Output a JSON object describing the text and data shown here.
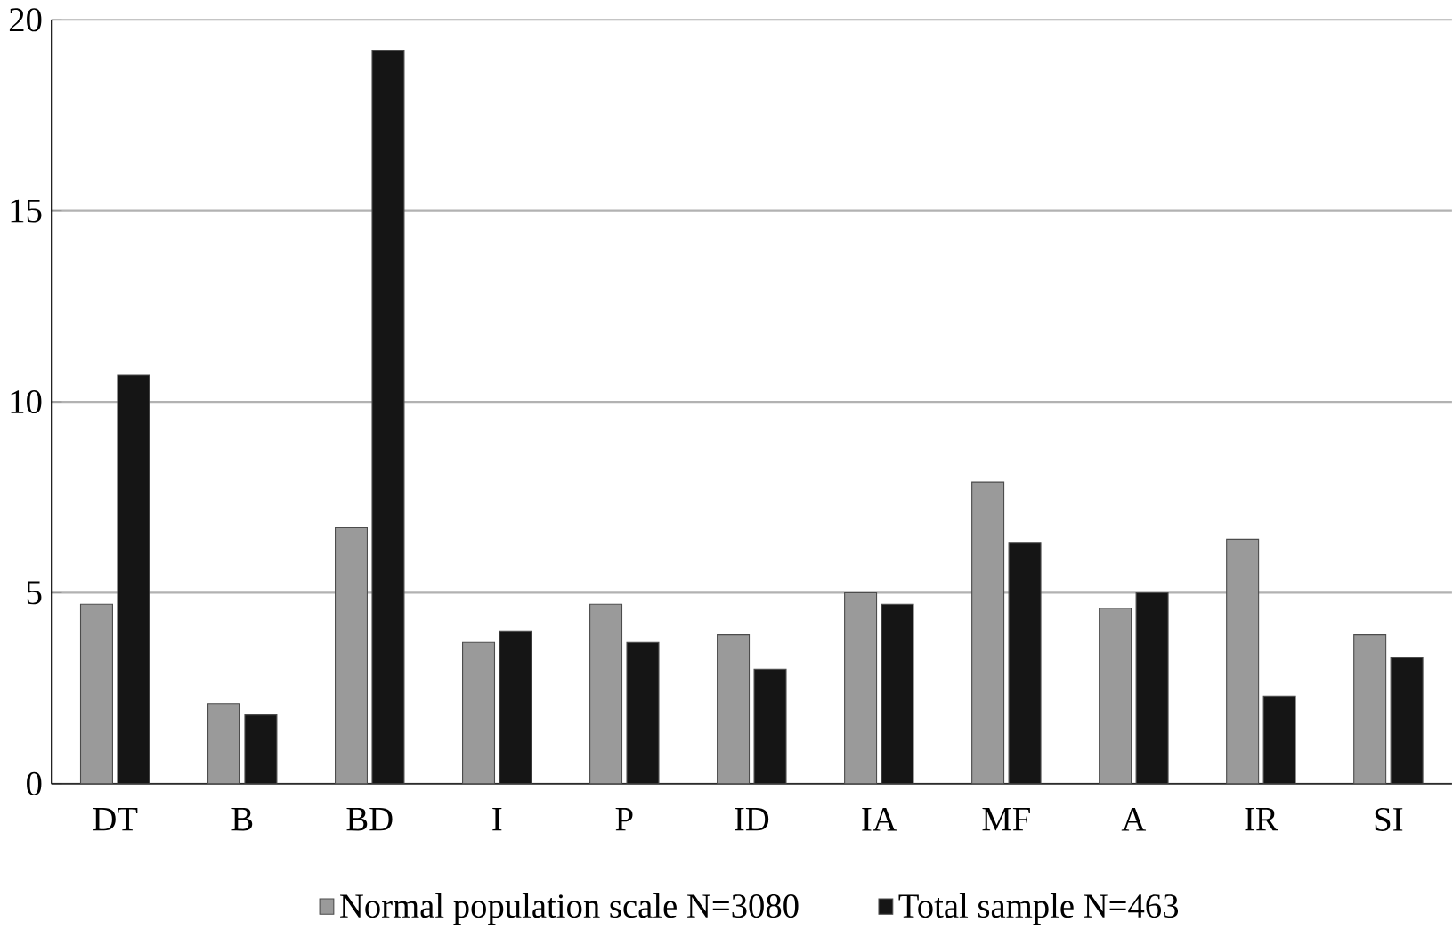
{
  "chart_data": {
    "type": "bar",
    "categories": [
      "DT",
      "B",
      "BD",
      "I",
      "P",
      "ID",
      "IA",
      "MF",
      "A",
      "IR",
      "SI"
    ],
    "series": [
      {
        "name": "Normal population scale N=3080",
        "color": "#9a9a9a",
        "values": [
          4.7,
          2.1,
          6.7,
          3.7,
          4.7,
          3.9,
          5.0,
          7.9,
          4.6,
          6.4,
          3.9
        ]
      },
      {
        "name": "Total sample N=463",
        "color": "#151515",
        "values": [
          10.7,
          1.8,
          19.2,
          4.0,
          3.7,
          3.0,
          4.7,
          6.3,
          5.0,
          2.3,
          3.3
        ]
      }
    ],
    "ylim": [
      0,
      20
    ],
    "yticks": [
      0,
      5,
      10,
      15,
      20
    ],
    "grid": "y",
    "legend": "bottom"
  }
}
